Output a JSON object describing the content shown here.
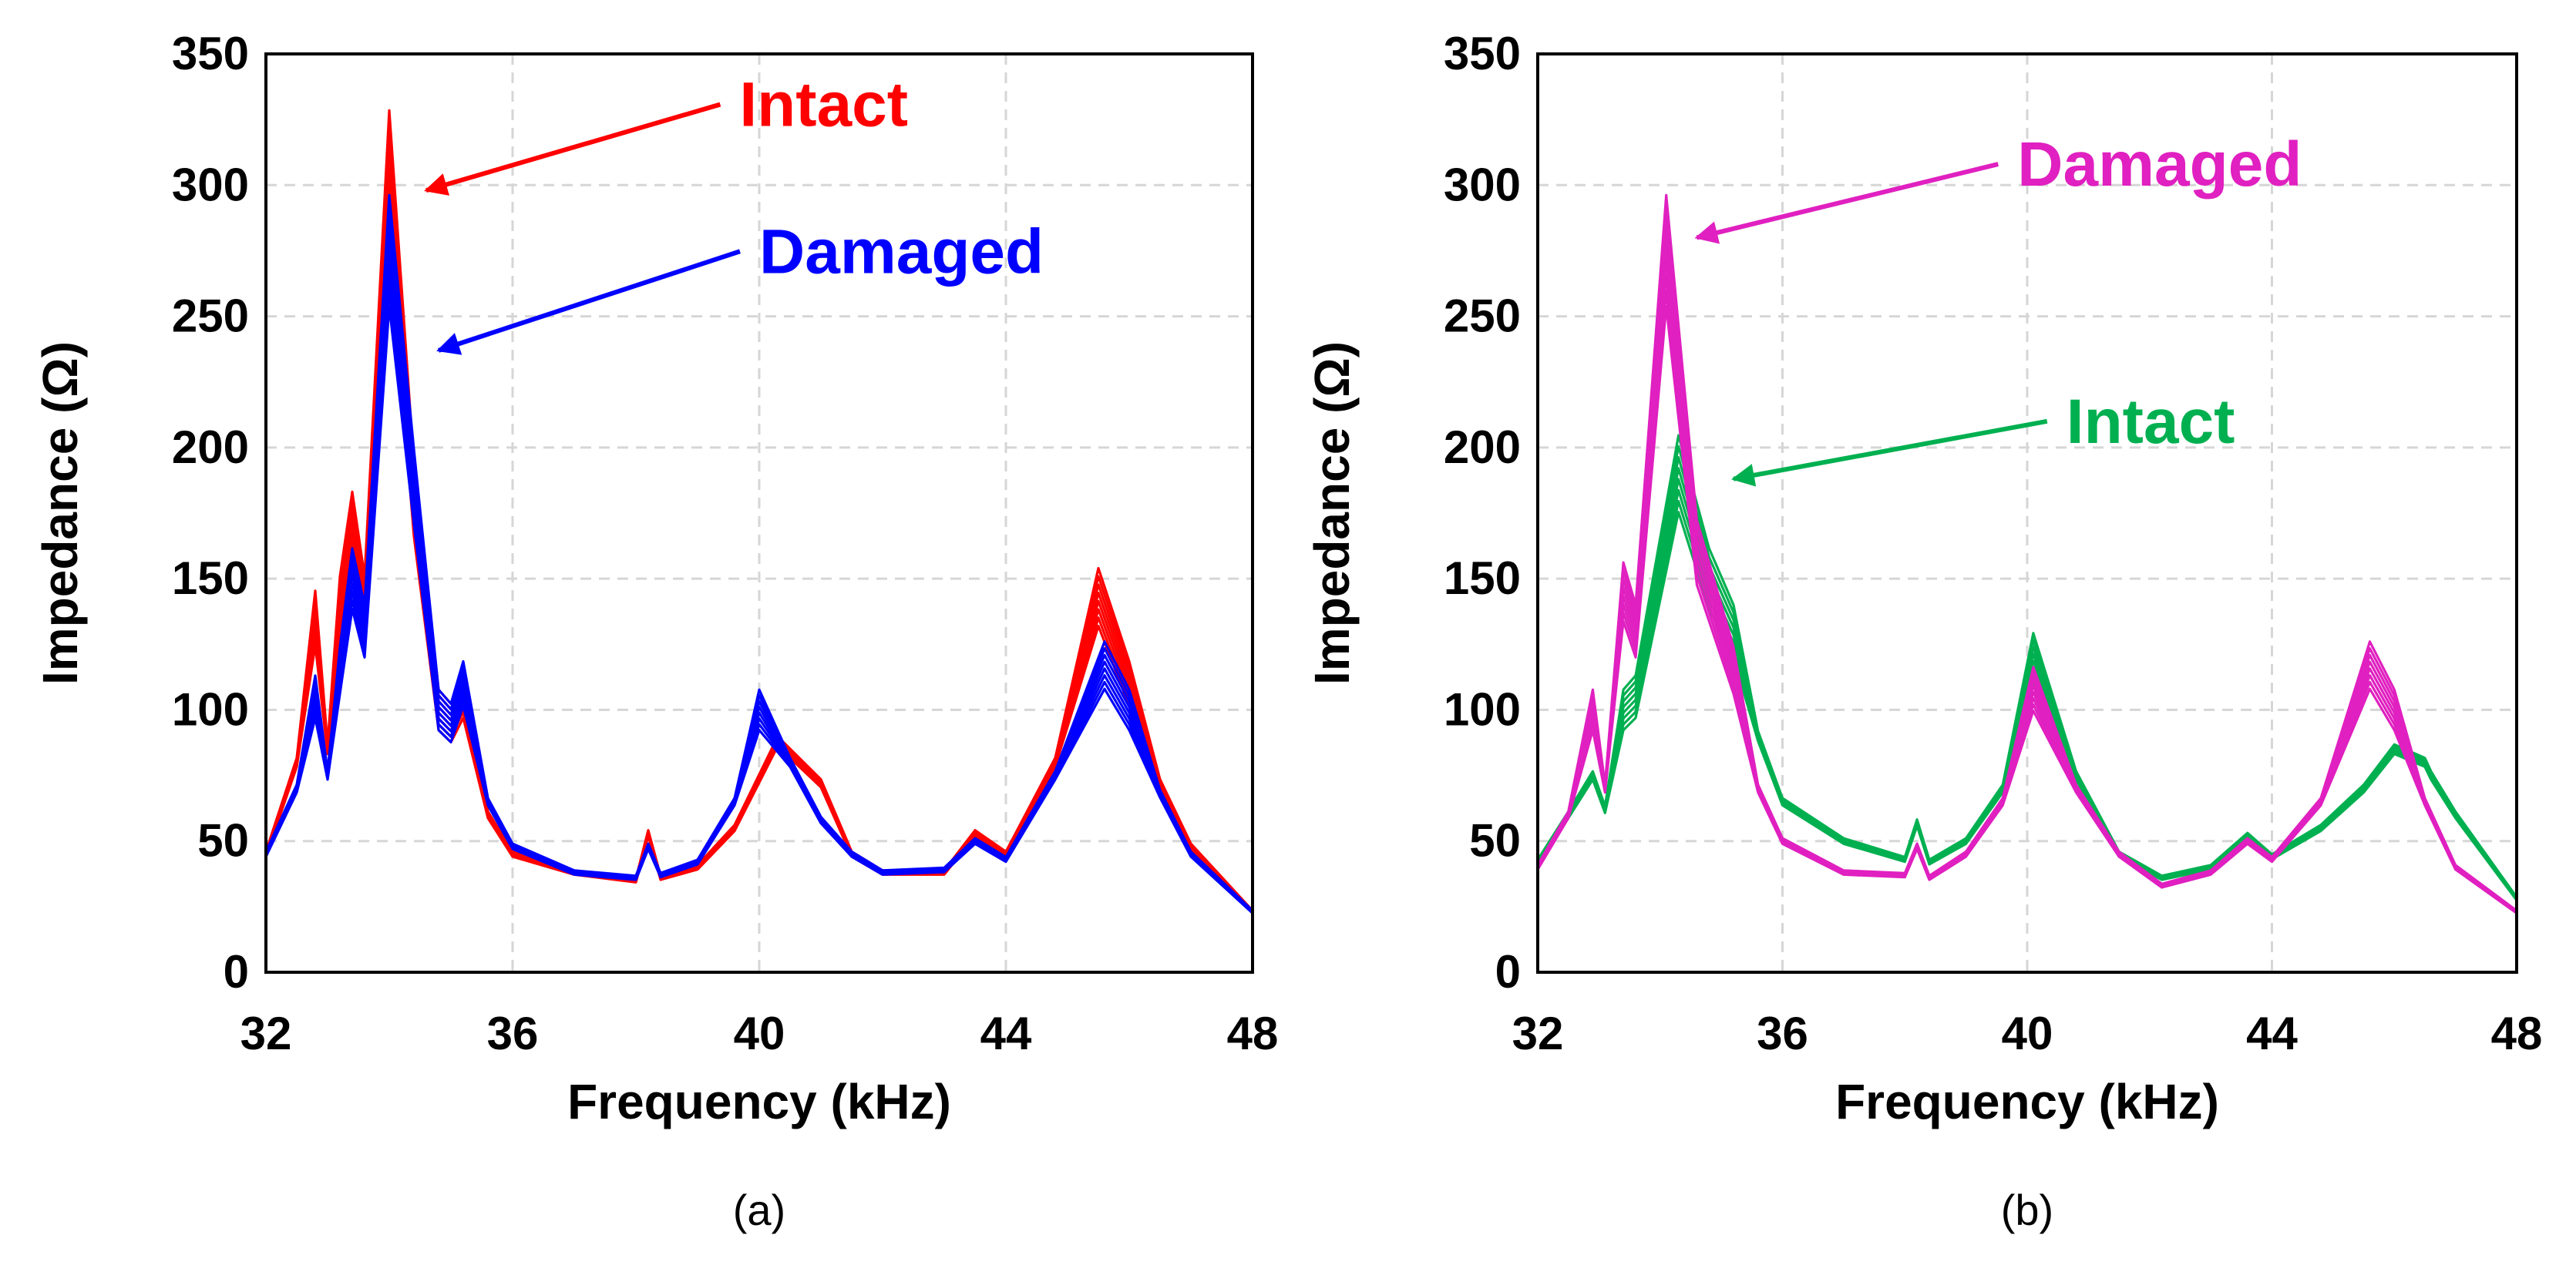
{
  "chart_data": [
    {
      "type": "line",
      "panel": "a",
      "caption": "(a)",
      "xlabel": "Frequency (kHz)",
      "ylabel": "Impedance (Ω)",
      "xlim": [
        32,
        48
      ],
      "ylim": [
        0,
        350
      ],
      "xticks": [
        32,
        36,
        40,
        44,
        48
      ],
      "yticks": [
        0,
        50,
        100,
        150,
        200,
        250,
        300,
        350
      ],
      "grid": true,
      "series": [
        {
          "name": "Intact",
          "color": "#ff0000",
          "curves": 8,
          "x": [
            32.0,
            32.5,
            32.8,
            33.0,
            33.2,
            33.4,
            33.6,
            34.0,
            34.4,
            34.8,
            35.0,
            35.2,
            35.6,
            36.0,
            37.0,
            38.0,
            38.2,
            38.4,
            39.0,
            39.6,
            40.3,
            41.0,
            41.5,
            42.0,
            43.0,
            43.5,
            44.0,
            44.8,
            45.5,
            46.0,
            46.5,
            47.0,
            48.0
          ],
          "values": [
            45,
            80,
            135,
            85,
            140,
            170,
            140,
            305,
            180,
            100,
            95,
            105,
            60,
            45,
            38,
            35,
            53,
            36,
            40,
            55,
            88,
            72,
            45,
            38,
            38,
            53,
            45,
            80,
            143,
            110,
            72,
            48,
            23
          ]
        },
        {
          "name": "Damaged",
          "color": "#0000ff",
          "curves": 8,
          "x": [
            32.0,
            32.5,
            32.8,
            33.0,
            33.2,
            33.4,
            33.6,
            34.0,
            34.4,
            34.8,
            35.0,
            35.2,
            35.6,
            36.0,
            37.0,
            38.0,
            38.2,
            38.4,
            39.0,
            39.6,
            40.0,
            40.5,
            41.0,
            41.5,
            42.0,
            43.0,
            43.5,
            44.0,
            44.8,
            45.6,
            46.0,
            46.5,
            47.0,
            48.0
          ],
          "values": [
            45,
            70,
            105,
            75,
            115,
            150,
            130,
            275,
            185,
            100,
            95,
            110,
            65,
            48,
            38,
            36,
            48,
            37,
            42,
            65,
            100,
            80,
            58,
            45,
            38,
            39,
            50,
            43,
            75,
            117,
            100,
            68,
            45,
            23
          ]
        }
      ],
      "annotations": [
        {
          "text": "Intact",
          "color": "#ff0000",
          "target": [
            34.6,
            298
          ]
        },
        {
          "text": "Damaged",
          "color": "#0000ff",
          "target": [
            34.8,
            237
          ]
        }
      ]
    },
    {
      "type": "line",
      "panel": "b",
      "caption": "(b)",
      "xlabel": "Frequency (kHz)",
      "ylabel": "Impedance (Ω)",
      "xlim": [
        32,
        48
      ],
      "ylim": [
        0,
        350
      ],
      "xticks": [
        32,
        36,
        40,
        44,
        48
      ],
      "yticks": [
        0,
        50,
        100,
        150,
        200,
        250,
        300,
        350
      ],
      "grid": true,
      "series": [
        {
          "name": "Intact",
          "color": "#00b050",
          "curves": 8,
          "x": [
            32.0,
            32.5,
            32.9,
            33.1,
            33.4,
            33.6,
            34.3,
            34.8,
            35.2,
            35.6,
            36.0,
            37.0,
            38.0,
            38.2,
            38.4,
            39.0,
            39.6,
            40.1,
            40.8,
            41.5,
            42.2,
            43.0,
            43.6,
            44.0,
            44.8,
            45.5,
            46.0,
            46.5,
            46.6,
            47.0,
            48.0
          ],
          "values": [
            42,
            60,
            75,
            62,
            100,
            105,
            190,
            150,
            130,
            90,
            65,
            50,
            43,
            57,
            42,
            50,
            70,
            120,
            75,
            45,
            36,
            40,
            52,
            44,
            55,
            70,
            85,
            80,
            75,
            60,
            28
          ]
        },
        {
          "name": "Damaged",
          "color": "#e020c0",
          "curves": 8,
          "x": [
            32.0,
            32.5,
            32.9,
            33.1,
            33.4,
            33.6,
            34.1,
            34.6,
            35.2,
            35.6,
            36.0,
            37.0,
            38.0,
            38.2,
            38.4,
            39.0,
            39.6,
            40.1,
            40.8,
            41.5,
            42.2,
            43.0,
            43.6,
            44.0,
            44.8,
            45.6,
            46.0,
            46.5,
            47.0,
            48.0
          ],
          "values": [
            40,
            60,
            100,
            70,
            145,
            130,
            275,
            160,
            115,
            70,
            50,
            38,
            37,
            48,
            36,
            45,
            65,
            108,
            70,
            45,
            33,
            38,
            50,
            43,
            65,
            117,
            100,
            65,
            40,
            23
          ]
        }
      ],
      "annotations": [
        {
          "text": "Damaged",
          "color": "#e020c0",
          "target": [
            34.6,
            280
          ]
        },
        {
          "text": "Intact",
          "color": "#00b050",
          "target": [
            35.2,
            188
          ]
        }
      ]
    }
  ]
}
